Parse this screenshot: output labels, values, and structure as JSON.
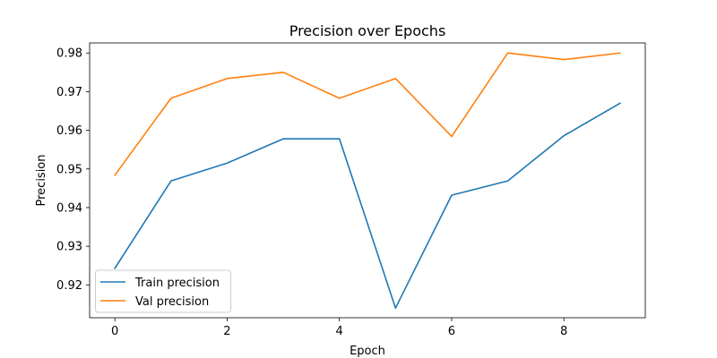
{
  "chart_data": {
    "type": "line",
    "title": "Precision over Epochs",
    "xlabel": "Epoch",
    "ylabel": "Precision",
    "x": [
      0,
      1,
      2,
      3,
      4,
      5,
      6,
      7,
      8,
      9
    ],
    "xlim": [
      -0.45,
      9.45
    ],
    "ylim": [
      0.9115,
      0.9826
    ],
    "xticks": [
      0,
      2,
      4,
      6,
      8
    ],
    "yticks": [
      0.92,
      0.93,
      0.94,
      0.95,
      0.96,
      0.97,
      0.98
    ],
    "ytick_labels": [
      "0.92",
      "0.93",
      "0.94",
      "0.95",
      "0.96",
      "0.97",
      "0.98"
    ],
    "grid": false,
    "legend_position": "lower-left",
    "series": [
      {
        "name": "Train precision",
        "color": "#1f77b4",
        "values": [
          0.9243,
          0.9469,
          0.9515,
          0.9578,
          0.9578,
          0.914,
          0.9432,
          0.9469,
          0.9586,
          0.967
        ]
      },
      {
        "name": "Val precision",
        "color": "#ff7f0e",
        "values": [
          0.9484,
          0.9683,
          0.9734,
          0.975,
          0.9683,
          0.9734,
          0.9584,
          0.98,
          0.9783,
          0.98
        ]
      }
    ]
  }
}
